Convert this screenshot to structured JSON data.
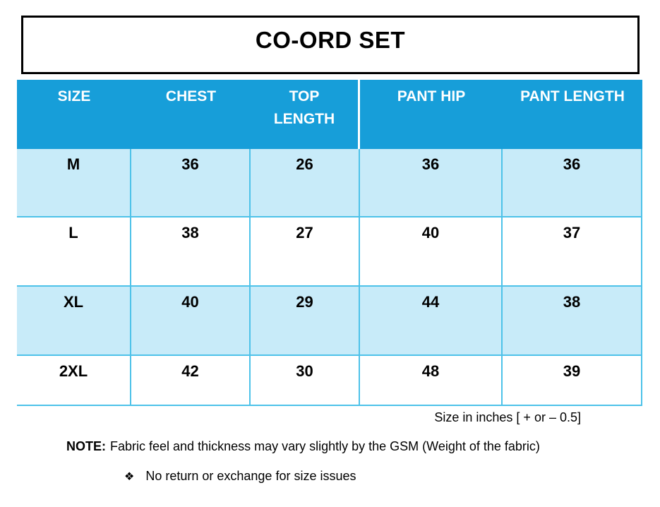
{
  "title": "CO-ORD SET",
  "table": {
    "headers": [
      "SIZE",
      "CHEST",
      "TOP LENGTH",
      "PANT HIP",
      "PANT LENGTH"
    ],
    "rows": [
      [
        "M",
        "36",
        "26",
        "36",
        "36"
      ],
      [
        "L",
        "38",
        "27",
        "40",
        "37"
      ],
      [
        "XL",
        "40",
        "29",
        "44",
        "38"
      ],
      [
        "2XL",
        "42",
        "30",
        "48",
        "39"
      ]
    ]
  },
  "caption": "Size in inches [ + or – 0.5]",
  "note": {
    "label": "NOTE:",
    "text": "Fabric feel and thickness may vary slightly by the GSM (Weight of the fabric)"
  },
  "bullet": {
    "icon": "❖",
    "text": "No return or exchange for size issues"
  },
  "colors": {
    "header_blue": "#179ED9",
    "row_blue": "#C8EBF9",
    "border_cyan": "#4DC2E9",
    "text_black": "#000000"
  }
}
